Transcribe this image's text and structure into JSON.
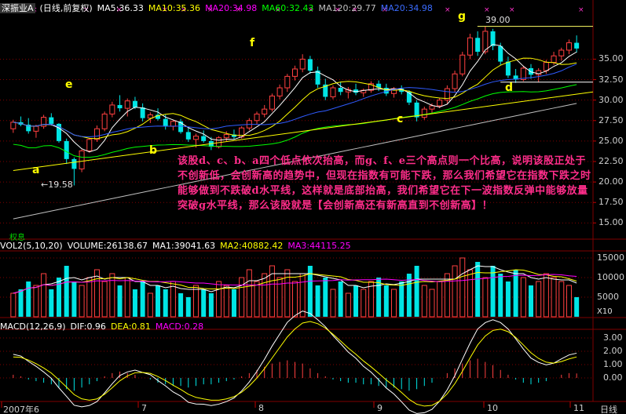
{
  "header": {
    "stock_name": "深振业A",
    "period": "(日线,前复权)",
    "ma5": "MA5:36.33",
    "ma10": "MA10:35.36",
    "ma20": "MA20:34.98",
    "ma60": "MA60:32.43",
    "ma120": "MA120:29.77",
    "ma250": "MA20:34.98"
  },
  "volume_header": {
    "title": "VOL2(5,10,20)",
    "volume": "VOLUME:26138.67",
    "ma1": "MA1:39041.63",
    "ma2": "MA2:40882.42",
    "ma3": "MA3:44115.25"
  },
  "macd_header": {
    "title": "MACD(12,26,9)",
    "dif": "DIF:0.96",
    "dea": "DEA:0.81",
    "macd": "MACD:0.28"
  },
  "price_axis": [
    "35.00",
    "32.50",
    "30.00",
    "27.50",
    "25.00",
    "22.50",
    "20.00",
    "17.50",
    "15.00"
  ],
  "volume_axis": [
    "15000",
    "10000",
    "5000"
  ],
  "volume_unit": "X10",
  "macd_axis": [
    "3.00",
    "2.00",
    "1.00",
    "0.00"
  ],
  "x_axis": [
    "2007年6",
    "7",
    "8",
    "9",
    "10",
    "11"
  ],
  "bottom_right": "日线",
  "annotation": "该股d、c、b、a四个低点依次抬高，而g、f、e三个高点则一个比高，说明该股正处于不创新低，会创新高的趋势中，但现在指数有可能下跌，那么我们希望它在指数下跌之时能够做到不跌破d水平线，这样就是底部抬高，我们希望它在下一波指数反弹中能够放量突破g水平线，那么该股就是【会创新高还有新高直到不创新高】！",
  "point_labels": {
    "a": "a",
    "b": "b",
    "c": "c",
    "d": "d",
    "e": "e",
    "f": "f",
    "g": "g"
  },
  "low_mark": "←19.58",
  "high_mark": "39.00",
  "weight_mark": "权息",
  "colors": {
    "up": "#ff4040",
    "down": "#00e5e5",
    "ma5": "#ffffff",
    "ma10": "#ffff00",
    "ma20": "#ff00ff",
    "ma60": "#00ff00",
    "ma120": "#c0c0c0",
    "grid": "#800000",
    "trend": "#ffff00"
  },
  "chart_data": {
    "type": "candlestick",
    "ylim": [
      13.5,
      40.5
    ],
    "candles_ohlc": [
      [
        26.5,
        27.6,
        26.0,
        27.3
      ],
      [
        27.3,
        28.0,
        26.8,
        27.0
      ],
      [
        27.0,
        27.8,
        25.9,
        26.2
      ],
      [
        26.2,
        27.0,
        25.4,
        26.8
      ],
      [
        26.8,
        28.2,
        26.5,
        27.9
      ],
      [
        27.9,
        28.4,
        26.9,
        27.1
      ],
      [
        27.1,
        27.2,
        24.8,
        25.0
      ],
      [
        25.0,
        25.3,
        22.2,
        22.8
      ],
      [
        22.8,
        23.0,
        19.58,
        21.6
      ],
      [
        21.6,
        24.0,
        21.2,
        23.8
      ],
      [
        23.8,
        25.4,
        23.6,
        25.2
      ],
      [
        25.2,
        26.9,
        24.9,
        26.5
      ],
      [
        26.5,
        28.6,
        26.2,
        28.3
      ],
      [
        28.3,
        29.8,
        27.9,
        29.4
      ],
      [
        29.4,
        30.6,
        28.6,
        29.0
      ],
      [
        29.0,
        30.2,
        28.0,
        29.9
      ],
      [
        29.9,
        30.4,
        28.9,
        29.1
      ],
      [
        29.1,
        29.6,
        27.4,
        27.8
      ],
      [
        27.8,
        28.5,
        27.2,
        28.2
      ],
      [
        28.2,
        29.0,
        27.5,
        27.7
      ],
      [
        27.7,
        28.2,
        26.4,
        26.8
      ],
      [
        26.8,
        27.6,
        26.3,
        27.4
      ],
      [
        27.4,
        27.7,
        25.9,
        26.1
      ],
      [
        26.1,
        26.6,
        24.9,
        25.2
      ],
      [
        25.2,
        25.9,
        24.2,
        25.6
      ],
      [
        25.6,
        26.3,
        24.8,
        25.0
      ],
      [
        25.0,
        25.5,
        23.9,
        24.3
      ],
      [
        24.3,
        25.6,
        24.1,
        25.4
      ],
      [
        25.4,
        26.2,
        25.0,
        25.8
      ],
      [
        25.8,
        26.4,
        25.2,
        25.5
      ],
      [
        25.5,
        26.8,
        25.3,
        26.6
      ],
      [
        26.6,
        27.8,
        26.3,
        27.5
      ],
      [
        27.5,
        28.6,
        27.0,
        28.3
      ],
      [
        28.3,
        29.4,
        27.9,
        28.9
      ],
      [
        28.9,
        30.8,
        28.6,
        30.5
      ],
      [
        30.5,
        31.9,
        30.1,
        31.5
      ],
      [
        31.5,
        33.2,
        31.0,
        32.9
      ],
      [
        32.9,
        34.2,
        32.4,
        33.8
      ],
      [
        33.8,
        35.6,
        33.4,
        35.0
      ],
      [
        35.0,
        35.4,
        33.2,
        33.6
      ],
      [
        33.6,
        34.1,
        31.5,
        31.9
      ],
      [
        31.9,
        32.6,
        30.0,
        30.4
      ],
      [
        30.4,
        31.8,
        30.1,
        31.5
      ],
      [
        31.5,
        32.2,
        30.6,
        31.0
      ],
      [
        31.0,
        31.6,
        30.2,
        31.3
      ],
      [
        31.3,
        32.0,
        30.6,
        30.9
      ],
      [
        30.9,
        31.4,
        30.4,
        31.2
      ],
      [
        31.2,
        32.3,
        30.9,
        32.0
      ],
      [
        32.0,
        32.4,
        31.1,
        31.5
      ],
      [
        31.5,
        32.0,
        30.5,
        30.8
      ],
      [
        30.8,
        31.6,
        30.3,
        31.4
      ],
      [
        31.4,
        31.8,
        30.7,
        31.0
      ],
      [
        31.0,
        31.2,
        29.4,
        29.7
      ],
      [
        29.7,
        30.0,
        27.4,
        27.9
      ],
      [
        27.9,
        29.2,
        27.6,
        28.9
      ],
      [
        28.9,
        29.6,
        28.3,
        29.3
      ],
      [
        29.3,
        30.3,
        29.0,
        30.0
      ],
      [
        30.0,
        31.8,
        29.6,
        31.4
      ],
      [
        31.4,
        33.6,
        31.0,
        33.2
      ],
      [
        33.2,
        35.9,
        32.9,
        35.5
      ],
      [
        35.5,
        38.1,
        35.0,
        37.6
      ],
      [
        37.6,
        38.4,
        35.4,
        35.9
      ],
      [
        35.9,
        39.0,
        35.6,
        38.4
      ],
      [
        38.4,
        38.7,
        36.1,
        36.6
      ],
      [
        36.6,
        37.0,
        34.3,
        34.7
      ],
      [
        34.7,
        35.3,
        32.7,
        33.0
      ],
      [
        33.0,
        33.8,
        32.1,
        32.5
      ],
      [
        32.5,
        34.2,
        32.3,
        33.9
      ],
      [
        33.9,
        34.4,
        32.6,
        33.1
      ],
      [
        33.1,
        33.9,
        32.2,
        33.6
      ],
      [
        33.6,
        34.9,
        33.2,
        34.6
      ],
      [
        34.6,
        35.9,
        34.3,
        35.4
      ],
      [
        35.4,
        36.4,
        34.8,
        36.1
      ],
      [
        36.1,
        37.4,
        35.6,
        37.0
      ],
      [
        37.0,
        37.9,
        35.8,
        36.3
      ]
    ],
    "volume": [
      6,
      7,
      9,
      8,
      11,
      7,
      10,
      13,
      9,
      8,
      10,
      12,
      9,
      11,
      8,
      10,
      7,
      9,
      6,
      8,
      7,
      9,
      6,
      5,
      8,
      7,
      6,
      9,
      8,
      7,
      10,
      12,
      9,
      11,
      13,
      10,
      12,
      9,
      11,
      13,
      8,
      10,
      7,
      9,
      6,
      8,
      7,
      9,
      10,
      8,
      7,
      9,
      11,
      13,
      8,
      7,
      9,
      11,
      13,
      15,
      12,
      14,
      10,
      13,
      11,
      9,
      12,
      10,
      8,
      9,
      11,
      10,
      9,
      8,
      5
    ],
    "macd_hist": [
      0.2,
      0.1,
      -0.1,
      -0.2,
      -0.3,
      -0.4,
      -0.6,
      -0.7,
      -0.8,
      -0.6,
      -0.4,
      -0.2,
      0.1,
      0.3,
      0.4,
      0.3,
      0.2,
      0.0,
      -0.1,
      -0.3,
      -0.4,
      -0.5,
      -0.5,
      -0.6,
      -0.5,
      -0.4,
      -0.4,
      -0.3,
      -0.2,
      -0.1,
      0.1,
      0.3,
      0.5,
      0.7,
      0.9,
      1.0,
      1.1,
      1.0,
      0.9,
      0.6,
      0.3,
      0.1,
      -0.1,
      -0.2,
      -0.3,
      -0.3,
      -0.4,
      -0.4,
      -0.5,
      -0.6,
      -0.6,
      -0.7,
      -0.8,
      -0.7,
      -0.5,
      -0.3,
      0.0,
      0.3,
      0.6,
      0.9,
      1.1,
      1.2,
      1.0,
      0.8,
      0.5,
      0.2,
      -0.1,
      -0.3,
      -0.4,
      -0.3,
      -0.2,
      0.0,
      0.2,
      0.3,
      0.28
    ]
  }
}
